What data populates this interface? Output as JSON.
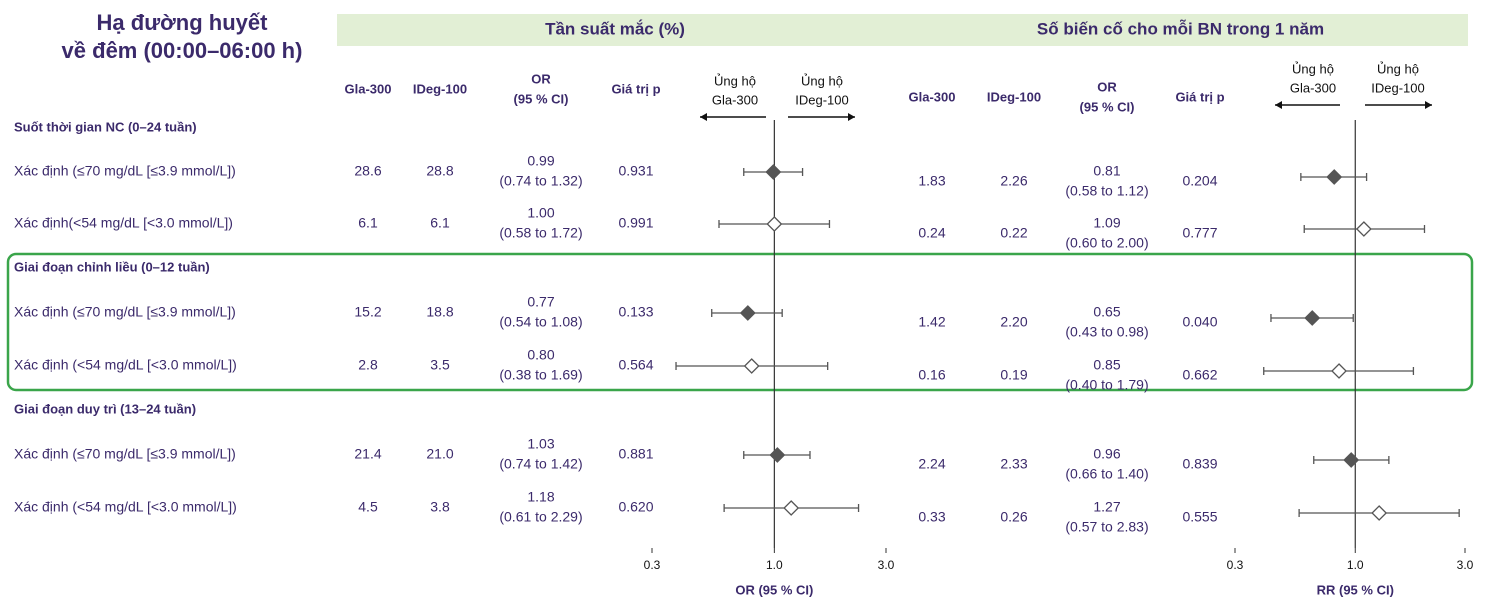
{
  "title_lines": [
    "Hạ đường huyết",
    "về đêm (00:00–06:00 h)"
  ],
  "groups": [
    {
      "name": "Suốt thời gian NC (0–24 tuần)",
      "rows": [
        "Xác định (≤70 mg/dL [≤3.9 mmol/L])",
        "Xác định(<54 mg/dL [<3.0 mmol/L])"
      ]
    },
    {
      "name": "Giai đoạn chỉnh liều (0–12 tuần)",
      "rows": [
        "Xác định (≤70 mg/dL [≤3.9 mmol/L])",
        "Xác định (<54 mg/dL [<3.0 mmol/L])"
      ]
    },
    {
      "name": "Giai đoạn duy trì (13–24 tuần)",
      "rows": [
        "Xác định (≤70 mg/dL [≤3.9 mmol/L])",
        "Xác định (<54 mg/dL [<3.0 mmol/L])"
      ]
    }
  ],
  "highlight_color": "#3aa54a",
  "chart_data": [
    {
      "type": "forest",
      "title": "Tần suất mắc (%)",
      "header_color": "#e2efd5",
      "columns": [
        [
          "Gla-300"
        ],
        [
          "IDeg-100"
        ],
        [
          "OR",
          "(95 % CI)"
        ],
        [
          "Giá trị p"
        ]
      ],
      "favors": [
        [
          "Ủng hộ",
          "Gla-300"
        ],
        [
          "Ủng hộ",
          "IDeg-100"
        ]
      ],
      "gla": [
        "28.6",
        "6.1",
        "15.2",
        "2.8",
        "21.4",
        "4.5"
      ],
      "ideg": [
        "28.8",
        "6.1",
        "18.8",
        "3.5",
        "21.0",
        "3.8"
      ],
      "values": [
        0.99,
        1.0,
        0.77,
        0.8,
        1.03,
        1.18
      ],
      "value_labels": [
        "0.99",
        "1.00",
        "0.77",
        "0.80",
        "1.03",
        "1.18"
      ],
      "ci_low": [
        0.74,
        0.58,
        0.54,
        0.38,
        0.74,
        0.61
      ],
      "ci_high": [
        1.32,
        1.72,
        1.08,
        1.69,
        1.42,
        2.29
      ],
      "ci_labels": [
        "(0.74 to 1.32)",
        "(0.58 to 1.72)",
        "(0.54 to 1.08)",
        "(0.38 to 1.69)",
        "(0.74 to 1.42)",
        "(0.61 to 2.29)"
      ],
      "p_values": [
        "0.931",
        "0.991",
        "0.133",
        "0.564",
        "0.881",
        "0.620"
      ],
      "filled": [
        true,
        false,
        true,
        false,
        true,
        false
      ],
      "marker_color": "#555555",
      "log_x": true,
      "xlim": [
        0.3,
        3.0
      ],
      "xticks": [
        0.3,
        {
          "value": 1,
          "label": "1.0"
        },
        {
          "value": 3,
          "label": "3.0"
        }
      ],
      "reference": 1,
      "xlabel": "OR (95 % CI)"
    },
    {
      "type": "forest",
      "title": "Số biến cố cho mỗi BN trong 1 năm",
      "header_color": "#e2efd5",
      "columns": [
        [
          "Gla-300"
        ],
        [
          "IDeg-100"
        ],
        [
          "OR",
          "(95 % CI)"
        ],
        [
          "Giá trị p"
        ]
      ],
      "favors": [
        [
          "Ủng hộ",
          "Gla-300"
        ],
        [
          "Ủng hộ",
          "IDeg-100"
        ]
      ],
      "gla": [
        "1.83",
        "0.24",
        "1.42",
        "0.16",
        "2.24",
        "0.33"
      ],
      "ideg": [
        "2.26",
        "0.22",
        "2.20",
        "0.19",
        "2.33",
        "0.26"
      ],
      "values": [
        0.81,
        1.09,
        0.65,
        0.85,
        0.96,
        1.27
      ],
      "value_labels": [
        "0.81",
        "1.09",
        "0.65",
        "0.85",
        "0.96",
        "1.27"
      ],
      "ci_low": [
        0.58,
        0.6,
        0.43,
        0.4,
        0.66,
        0.57
      ],
      "ci_high": [
        1.12,
        2.0,
        0.98,
        1.79,
        1.4,
        2.83
      ],
      "ci_labels": [
        "(0.58 to 1.12)",
        "(0.60 to 2.00)",
        "(0.43 to 0.98)",
        "(0.40 to 1.79)",
        "(0.66 to 1.40)",
        "(0.57 to 2.83)"
      ],
      "p_values": [
        "0.204",
        "0.777",
        "0.040",
        "0.662",
        "0.839",
        "0.555"
      ],
      "filled": [
        true,
        false,
        true,
        false,
        true,
        false
      ],
      "marker_color": "#555555",
      "log_x": true,
      "xlim": [
        0.3,
        3.0
      ],
      "xticks": [
        0.3,
        {
          "value": 1,
          "label": "1.0"
        },
        {
          "value": 3,
          "label": "3.0"
        }
      ],
      "reference": 1,
      "xlabel": "RR (95 % CI)"
    }
  ]
}
